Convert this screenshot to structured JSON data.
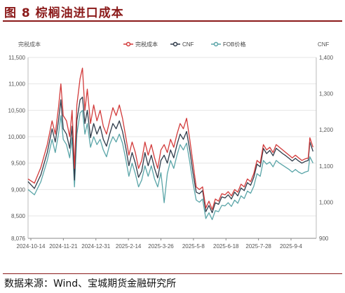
{
  "figure": {
    "title": "图 8   棕榈油进口成本",
    "source": "数据来源：Wind、宝城期货金融研究所"
  },
  "chart_data": {
    "type": "line",
    "y_left_unit": "完税成本",
    "y_right_unit": "CNF",
    "y_left_range": [
      8076,
      11500
    ],
    "y_left_ticks": [
      "11,500",
      "11,000",
      "10,500",
      "10,000",
      "9,500",
      "9,000",
      "8,500",
      "8,076"
    ],
    "y_right_range": [
      900,
      1400
    ],
    "y_right_ticks": [
      "1,400",
      "1,300",
      "1,200",
      "1,100",
      "1,000",
      "900"
    ],
    "x_tick_labels": [
      "2024-10-14",
      "2024-11-21",
      "2024-12-31",
      "2025-2-14",
      "2025-3-26",
      "2025-5-8",
      "2025-6-18",
      "2025-7-28",
      "2025-9-4"
    ],
    "legend_position": "top",
    "series": [
      {
        "name": "完税成本",
        "axis": "left",
        "color": "#d23a3a",
        "points": [
          [
            0,
            9200
          ],
          [
            0.8,
            9120
          ],
          [
            1.6,
            9420
          ],
          [
            2.4,
            9850
          ],
          [
            3.0,
            10300
          ],
          [
            3.4,
            10050
          ],
          [
            3.8,
            10550
          ],
          [
            4.1,
            11000
          ],
          [
            4.4,
            10400
          ],
          [
            4.8,
            10300
          ],
          [
            5.2,
            10000
          ],
          [
            5.5,
            10500
          ],
          [
            5.8,
            9400
          ],
          [
            6.1,
            10600
          ],
          [
            6.5,
            11100
          ],
          [
            6.8,
            11300
          ],
          [
            7.1,
            10500
          ],
          [
            7.4,
            10900
          ],
          [
            7.8,
            10250
          ],
          [
            8.2,
            10600
          ],
          [
            8.6,
            10300
          ],
          [
            9.0,
            10500
          ],
          [
            9.4,
            10200
          ],
          [
            9.8,
            10050
          ],
          [
            10.2,
            10300
          ],
          [
            10.6,
            10550
          ],
          [
            11.0,
            10400
          ],
          [
            11.4,
            10600
          ],
          [
            11.8,
            10350
          ],
          [
            12.2,
            10000
          ],
          [
            12.6,
            9650
          ],
          [
            13.0,
            9900
          ],
          [
            13.4,
            9700
          ],
          [
            13.8,
            9400
          ],
          [
            14.2,
            9550
          ],
          [
            14.6,
            9900
          ],
          [
            15.0,
            9650
          ],
          [
            15.4,
            9850
          ],
          [
            15.8,
            9600
          ],
          [
            16.2,
            9400
          ],
          [
            16.6,
            9750
          ],
          [
            17.0,
            9850
          ],
          [
            17.4,
            9700
          ],
          [
            17.8,
            9950
          ],
          [
            18.2,
            9800
          ],
          [
            18.6,
            10050
          ],
          [
            19.0,
            10250
          ],
          [
            19.4,
            10150
          ],
          [
            19.8,
            10350
          ],
          [
            20.2,
            9950
          ],
          [
            20.6,
            9500
          ],
          [
            21.0,
            9050
          ],
          [
            21.4,
            9000
          ],
          [
            21.8,
            9050
          ],
          [
            22.2,
            8650
          ],
          [
            22.6,
            8780
          ],
          [
            23.0,
            8620
          ],
          [
            23.4,
            8820
          ],
          [
            23.8,
            8780
          ],
          [
            24.2,
            8920
          ],
          [
            24.6,
            8900
          ],
          [
            25.0,
            8960
          ],
          [
            25.4,
            8880
          ],
          [
            25.8,
            9000
          ],
          [
            26.2,
            8950
          ],
          [
            26.6,
            9100
          ],
          [
            27.0,
            9050
          ],
          [
            27.4,
            9200
          ],
          [
            27.8,
            9150
          ],
          [
            28.2,
            9300
          ],
          [
            28.6,
            9550
          ],
          [
            29.0,
            9500
          ],
          [
            29.4,
            9850
          ],
          [
            29.8,
            9750
          ],
          [
            30.2,
            9800
          ],
          [
            30.6,
            9700
          ],
          [
            31.0,
            9850
          ],
          [
            31.4,
            9800
          ],
          [
            31.8,
            9750
          ],
          [
            32.2,
            9700
          ],
          [
            32.6,
            9650
          ],
          [
            33.0,
            9600
          ],
          [
            33.4,
            9650
          ],
          [
            33.8,
            9600
          ],
          [
            34.2,
            9550
          ],
          [
            34.6,
            9580
          ],
          [
            35.0,
            9600
          ],
          [
            35.2,
            9980
          ],
          [
            35.6,
            9800
          ]
        ]
      },
      {
        "name": "CNF",
        "axis": "left",
        "color": "#2f3b4a",
        "points": [
          [
            0,
            9150
          ],
          [
            0.8,
            9020
          ],
          [
            1.6,
            9280
          ],
          [
            2.4,
            9700
          ],
          [
            3.0,
            10150
          ],
          [
            3.4,
            9900
          ],
          [
            3.8,
            10300
          ],
          [
            4.1,
            10700
          ],
          [
            4.4,
            10150
          ],
          [
            4.8,
            10050
          ],
          [
            5.2,
            9780
          ],
          [
            5.5,
            10200
          ],
          [
            5.8,
            9180
          ],
          [
            6.1,
            10300
          ],
          [
            6.5,
            10700
          ],
          [
            6.8,
            10750
          ],
          [
            7.1,
            10250
          ],
          [
            7.4,
            10500
          ],
          [
            7.8,
            9980
          ],
          [
            8.2,
            10250
          ],
          [
            8.6,
            10050
          ],
          [
            9.0,
            10200
          ],
          [
            9.4,
            9950
          ],
          [
            9.8,
            9820
          ],
          [
            10.2,
            10050
          ],
          [
            10.6,
            10250
          ],
          [
            11.0,
            10150
          ],
          [
            11.4,
            10300
          ],
          [
            11.8,
            10100
          ],
          [
            12.2,
            9800
          ],
          [
            12.6,
            9450
          ],
          [
            13.0,
            9700
          ],
          [
            13.4,
            9500
          ],
          [
            13.8,
            9230
          ],
          [
            14.2,
            9350
          ],
          [
            14.6,
            9700
          ],
          [
            15.0,
            9450
          ],
          [
            15.4,
            9650
          ],
          [
            15.8,
            9400
          ],
          [
            16.2,
            9220
          ],
          [
            16.6,
            9550
          ],
          [
            17.0,
            9650
          ],
          [
            17.4,
            9500
          ],
          [
            17.8,
            9750
          ],
          [
            18.2,
            9600
          ],
          [
            18.6,
            9850
          ],
          [
            19.0,
            10050
          ],
          [
            19.4,
            9950
          ],
          [
            19.8,
            10100
          ],
          [
            20.2,
            9750
          ],
          [
            20.6,
            9320
          ],
          [
            21.0,
            8950
          ],
          [
            21.4,
            8920
          ],
          [
            21.8,
            8980
          ],
          [
            22.2,
            8580
          ],
          [
            22.6,
            8700
          ],
          [
            23.0,
            8560
          ],
          [
            23.4,
            8750
          ],
          [
            23.8,
            8720
          ],
          [
            24.2,
            8860
          ],
          [
            24.6,
            8840
          ],
          [
            25.0,
            8900
          ],
          [
            25.4,
            8820
          ],
          [
            25.8,
            8950
          ],
          [
            26.2,
            8880
          ],
          [
            26.6,
            9030
          ],
          [
            27.0,
            8980
          ],
          [
            27.4,
            9130
          ],
          [
            27.8,
            9080
          ],
          [
            28.2,
            9230
          ],
          [
            28.6,
            9480
          ],
          [
            29.0,
            9430
          ],
          [
            29.4,
            9780
          ],
          [
            29.8,
            9680
          ],
          [
            30.2,
            9740
          ],
          [
            30.6,
            9640
          ],
          [
            31.0,
            9780
          ],
          [
            31.4,
            9730
          ],
          [
            31.8,
            9680
          ],
          [
            32.2,
            9640
          ],
          [
            32.6,
            9590
          ],
          [
            33.0,
            9540
          ],
          [
            33.4,
            9590
          ],
          [
            33.8,
            9540
          ],
          [
            34.2,
            9500
          ],
          [
            34.6,
            9530
          ],
          [
            35.0,
            9550
          ],
          [
            35.2,
            9900
          ],
          [
            35.6,
            9720
          ]
        ]
      },
      {
        "name": "FOB价格",
        "axis": "left",
        "color": "#5aa5a8",
        "points": [
          [
            0,
            9000
          ],
          [
            0.8,
            8900
          ],
          [
            1.6,
            9150
          ],
          [
            2.4,
            9550
          ],
          [
            3.0,
            9950
          ],
          [
            3.4,
            9700
          ],
          [
            3.8,
            10050
          ],
          [
            4.1,
            10400
          ],
          [
            4.4,
            9950
          ],
          [
            4.8,
            9850
          ],
          [
            5.2,
            9600
          ],
          [
            5.5,
            9980
          ],
          [
            5.8,
            9050
          ],
          [
            6.1,
            10050
          ],
          [
            6.5,
            10450
          ],
          [
            6.8,
            10500
          ],
          [
            7.1,
            10050
          ],
          [
            7.4,
            10250
          ],
          [
            7.8,
            9800
          ],
          [
            8.2,
            10000
          ],
          [
            8.6,
            9850
          ],
          [
            9.0,
            9950
          ],
          [
            9.4,
            9750
          ],
          [
            9.8,
            9620
          ],
          [
            10.2,
            9850
          ],
          [
            10.6,
            10000
          ],
          [
            11.0,
            9900
          ],
          [
            11.4,
            10050
          ],
          [
            11.8,
            9880
          ],
          [
            12.2,
            9580
          ],
          [
            12.6,
            9250
          ],
          [
            13.0,
            9500
          ],
          [
            13.4,
            9300
          ],
          [
            13.8,
            9050
          ],
          [
            14.2,
            9180
          ],
          [
            14.6,
            9450
          ],
          [
            15.0,
            9250
          ],
          [
            15.4,
            9450
          ],
          [
            15.8,
            9200
          ],
          [
            16.2,
            9050
          ],
          [
            16.6,
            9320
          ],
          [
            17.0,
            8750
          ],
          [
            17.4,
            9300
          ],
          [
            17.8,
            9550
          ],
          [
            18.2,
            9400
          ],
          [
            18.6,
            9650
          ],
          [
            19.0,
            9850
          ],
          [
            19.4,
            9750
          ],
          [
            19.8,
            9880
          ],
          [
            20.2,
            9520
          ],
          [
            20.6,
            9120
          ],
          [
            21.0,
            8800
          ],
          [
            21.4,
            8760
          ],
          [
            21.8,
            8820
          ],
          [
            22.2,
            8450
          ],
          [
            22.6,
            8560
          ],
          [
            23.0,
            8430
          ],
          [
            23.4,
            8600
          ],
          [
            23.8,
            8580
          ],
          [
            24.2,
            8700
          ],
          [
            24.6,
            8690
          ],
          [
            25.0,
            8750
          ],
          [
            25.4,
            8680
          ],
          [
            25.8,
            8800
          ],
          [
            26.2,
            8740
          ],
          [
            26.6,
            8880
          ],
          [
            27.0,
            8830
          ],
          [
            27.4,
            8970
          ],
          [
            27.8,
            8930
          ],
          [
            28.2,
            9060
          ],
          [
            28.6,
            9300
          ],
          [
            29.0,
            9250
          ],
          [
            29.4,
            9550
          ],
          [
            29.8,
            9480
          ],
          [
            30.2,
            9520
          ],
          [
            30.6,
            9430
          ],
          [
            31.0,
            9550
          ],
          [
            31.4,
            9500
          ],
          [
            31.8,
            9460
          ],
          [
            32.2,
            9420
          ],
          [
            32.6,
            9380
          ],
          [
            33.0,
            9330
          ],
          [
            33.4,
            9380
          ],
          [
            33.8,
            9330
          ],
          [
            34.2,
            9300
          ],
          [
            34.6,
            9330
          ],
          [
            35.0,
            9350
          ],
          [
            35.2,
            9620
          ],
          [
            35.6,
            9500
          ]
        ]
      }
    ]
  }
}
